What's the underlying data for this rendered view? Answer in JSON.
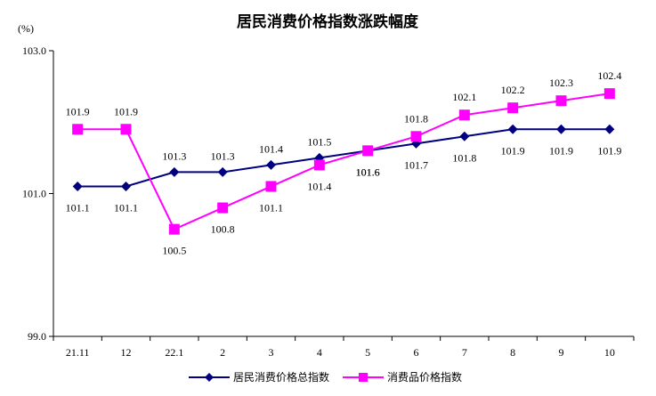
{
  "chart_data": {
    "type": "line",
    "title": "居民消费价格指数涨跌幅度",
    "unit_label": "(%)",
    "categories": [
      "21.11",
      "12",
      "22.1",
      "2",
      "3",
      "4",
      "5",
      "6",
      "7",
      "8",
      "9",
      "10"
    ],
    "ylim": [
      99.0,
      103.0
    ],
    "yticks": [
      "99.0",
      "101.0",
      "103.0"
    ],
    "grid": false,
    "legend_position": "bottom",
    "series": [
      {
        "name": "居民消费价格总指数",
        "color": "#000080",
        "marker": "diamond",
        "values": [
          101.1,
          101.1,
          101.3,
          101.3,
          101.4,
          101.5,
          101.6,
          101.7,
          101.8,
          101.9,
          101.9,
          101.9
        ],
        "labels": [
          "101.1",
          "101.1",
          "101.3",
          "101.3",
          "101.4",
          "101.5",
          "101.6",
          "101.7",
          "101.8",
          "101.9",
          "101.9",
          "101.9"
        ]
      },
      {
        "name": "消费品价格指数",
        "color": "#FF00FF",
        "marker": "square",
        "values": [
          101.9,
          101.9,
          100.5,
          100.8,
          101.1,
          101.4,
          101.6,
          101.8,
          102.1,
          102.2,
          102.3,
          102.4
        ],
        "labels": [
          "101.9",
          "101.9",
          "100.5",
          "100.8",
          "101.1",
          "101.4",
          "101.6",
          "101.8",
          "102.1",
          "102.2",
          "102.3",
          "102.4"
        ]
      }
    ]
  }
}
